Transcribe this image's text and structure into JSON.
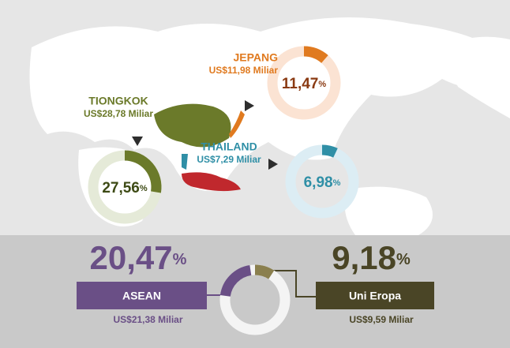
{
  "chart_data": {
    "type": "donut",
    "categories": [
      "JEPANG",
      "TIONGKOK",
      "THAILAND",
      "ASEAN",
      "Uni Eropa"
    ],
    "values": [
      11.47,
      27.56,
      6.98,
      20.47,
      9.18
    ],
    "value_labels": [
      "11,47",
      "27,56",
      "6,98",
      "20,47",
      "9,18"
    ],
    "unit": "%",
    "amounts": [
      "US$11,98 Miliar",
      "US$28,78 Miliar",
      "US$7,29 Miliar",
      "US$21,38 Miliar",
      "US$9,59 Miliar"
    ],
    "colors": [
      "#e07a1f",
      "#6b7a2a",
      "#2f8fa6",
      "#6a4f86",
      "#4a4526"
    ],
    "scale": 100
  }
}
